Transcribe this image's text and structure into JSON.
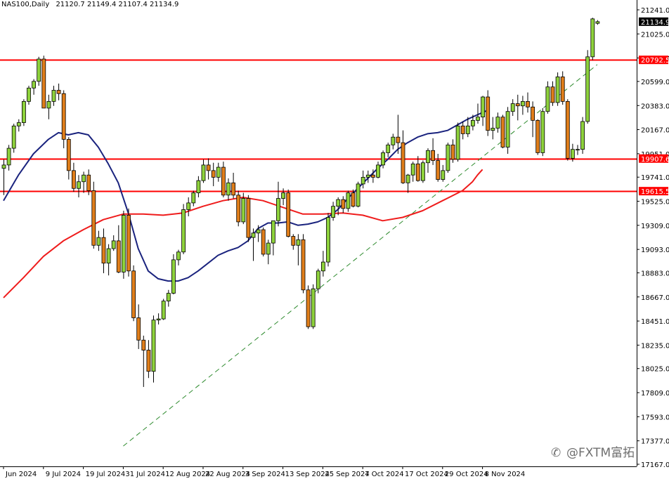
{
  "header": {
    "symbol": "NAS100,Daily",
    "ohlc": "21120.7 21149.4 21107.4 21134.9"
  },
  "watermark": {
    "text": "@FXTM富拓"
  },
  "chart_data": {
    "type": "candlestick",
    "symbol": "NAS100",
    "timeframe": "Daily",
    "ylim": [
      17167,
      21345
    ],
    "y_ticks": [
      21241.0,
      21025.0,
      20809.0,
      20599.0,
      20383.0,
      20167.0,
      19951.0,
      19741.0,
      19525.0,
      19309.0,
      19093.0,
      18883.0,
      18667.0,
      18451.0,
      18235.0,
      18025.0,
      17809.0,
      17593.0,
      17377.0,
      17167.0
    ],
    "x_ticks": [
      {
        "label": "Jun 2024",
        "i": 0
      },
      {
        "label": "9 Jul 2024",
        "i": 8
      },
      {
        "label": "19 Jul 2024",
        "i": 16
      },
      {
        "label": "31 Jul 2024",
        "i": 24
      },
      {
        "label": "12 Aug 2024",
        "i": 32
      },
      {
        "label": "22 Aug 2024",
        "i": 40
      },
      {
        "label": "3 Sep 2024",
        "i": 48
      },
      {
        "label": "13 Sep 2024",
        "i": 56
      },
      {
        "label": "25 Sep 2024",
        "i": 64
      },
      {
        "label": "7 Oct 2024",
        "i": 72
      },
      {
        "label": "17 Oct 2024",
        "i": 80
      },
      {
        "label": "29 Oct 2024",
        "i": 88
      },
      {
        "label": "8 Nov 2024",
        "i": 96
      }
    ],
    "candles": [
      [
        19820,
        19900,
        19580,
        19850
      ],
      [
        19850,
        20030,
        19800,
        20000
      ],
      [
        20000,
        20220,
        19960,
        20200
      ],
      [
        20200,
        20260,
        20150,
        20230
      ],
      [
        20230,
        20440,
        20200,
        20420
      ],
      [
        20420,
        20560,
        20390,
        20540
      ],
      [
        20540,
        20620,
        20480,
        20600
      ],
      [
        20600,
        20820,
        20560,
        20800
      ],
      [
        20800,
        20830,
        20360,
        20360
      ],
      [
        20360,
        20480,
        20260,
        20420
      ],
      [
        20420,
        20560,
        20380,
        20520
      ],
      [
        20520,
        20580,
        20430,
        20490
      ],
      [
        20490,
        20520,
        20000,
        20080
      ],
      [
        20080,
        20100,
        19720,
        19800
      ],
      [
        19800,
        19870,
        19610,
        19640
      ],
      [
        19640,
        19760,
        19560,
        19700
      ],
      [
        19700,
        19790,
        19600,
        19760
      ],
      [
        19760,
        19810,
        19580,
        19620
      ],
      [
        19620,
        19700,
        19100,
        19130
      ],
      [
        19130,
        19260,
        19080,
        19200
      ],
      [
        19200,
        19280,
        18880,
        18970
      ],
      [
        18970,
        19140,
        18860,
        19100
      ],
      [
        19100,
        19220,
        19080,
        19170
      ],
      [
        19170,
        19310,
        18880,
        18890
      ],
      [
        18890,
        19440,
        18830,
        19400
      ],
      [
        19400,
        19460,
        18850,
        18900
      ],
      [
        18900,
        18950,
        18450,
        18480
      ],
      [
        18480,
        18600,
        18200,
        18280
      ],
      [
        18280,
        18320,
        17860,
        18190
      ],
      [
        18190,
        18280,
        17940,
        18000
      ],
      [
        18000,
        18500,
        17900,
        18460
      ],
      [
        18460,
        18520,
        18420,
        18470
      ],
      [
        18470,
        18650,
        18460,
        18630
      ],
      [
        18630,
        18730,
        18580,
        18700
      ],
      [
        18700,
        19050,
        18690,
        19000
      ],
      [
        19000,
        19090,
        18950,
        19070
      ],
      [
        19070,
        19500,
        19050,
        19450
      ],
      [
        19450,
        19560,
        19390,
        19510
      ],
      [
        19510,
        19620,
        19480,
        19600
      ],
      [
        19600,
        19750,
        19560,
        19710
      ],
      [
        19710,
        19900,
        19690,
        19850
      ],
      [
        19850,
        19910,
        19720,
        19800
      ],
      [
        19800,
        19870,
        19660,
        19740
      ],
      [
        19740,
        19870,
        19700,
        19830
      ],
      [
        19830,
        19880,
        19560,
        19580
      ],
      [
        19580,
        19730,
        19530,
        19690
      ],
      [
        19690,
        19780,
        19550,
        19580
      ],
      [
        19580,
        19620,
        19300,
        19340
      ],
      [
        19340,
        19600,
        19320,
        19550
      ],
      [
        19550,
        19580,
        19160,
        19200
      ],
      [
        19200,
        19280,
        18990,
        19240
      ],
      [
        19240,
        19310,
        19160,
        19270
      ],
      [
        19270,
        19290,
        19030,
        19050
      ],
      [
        19050,
        19180,
        18960,
        19150
      ],
      [
        19150,
        19350,
        19040,
        19350
      ],
      [
        19350,
        19700,
        19300,
        19550
      ],
      [
        19550,
        19640,
        19490,
        19600
      ],
      [
        19600,
        19630,
        19200,
        19210
      ],
      [
        19210,
        19230,
        19090,
        19130
      ],
      [
        19130,
        19230,
        18950,
        19180
      ],
      [
        19180,
        19230,
        18700,
        18730
      ],
      [
        18730,
        18770,
        18380,
        18400
      ],
      [
        18400,
        18780,
        18380,
        18740
      ],
      [
        18740,
        18920,
        18700,
        18900
      ],
      [
        18900,
        19080,
        18850,
        18980
      ],
      [
        18980,
        19420,
        18940,
        19380
      ],
      [
        19380,
        19520,
        19350,
        19480
      ],
      [
        19480,
        19560,
        19400,
        19540
      ],
      [
        19540,
        19570,
        19420,
        19460
      ],
      [
        19460,
        19620,
        19430,
        19600
      ],
      [
        19600,
        19630,
        19470,
        19480
      ],
      [
        19480,
        19700,
        19470,
        19680
      ],
      [
        19680,
        19800,
        19640,
        19740
      ],
      [
        19740,
        19800,
        19690,
        19760
      ],
      [
        19760,
        19810,
        19690,
        19740
      ],
      [
        19740,
        19880,
        19730,
        19850
      ],
      [
        19850,
        19980,
        19820,
        19960
      ],
      [
        19960,
        20050,
        19920,
        20030
      ],
      [
        20030,
        20130,
        19990,
        20100
      ],
      [
        20100,
        20300,
        19950,
        20050
      ],
      [
        20050,
        20160,
        19680,
        19690
      ],
      [
        19690,
        19770,
        19600,
        19760
      ],
      [
        19760,
        19880,
        19700,
        19860
      ],
      [
        19860,
        19930,
        19700,
        19710
      ],
      [
        19710,
        19890,
        19690,
        19870
      ],
      [
        19870,
        20000,
        19780,
        19980
      ],
      [
        19980,
        20090,
        19850,
        19890
      ],
      [
        19890,
        19950,
        19700,
        19720
      ],
      [
        19720,
        19850,
        19700,
        19800
      ],
      [
        19800,
        20050,
        19780,
        20030
      ],
      [
        20030,
        20080,
        19870,
        19900
      ],
      [
        19900,
        20230,
        19880,
        20200
      ],
      [
        20200,
        20240,
        20080,
        20130
      ],
      [
        20130,
        20280,
        20100,
        20200
      ],
      [
        20200,
        20300,
        20160,
        20250
      ],
      [
        20250,
        20400,
        20220,
        20280
      ],
      [
        20280,
        20470,
        20200,
        20460
      ],
      [
        20460,
        20520,
        20110,
        20160
      ],
      [
        20160,
        20280,
        20080,
        20180
      ],
      [
        20180,
        20320,
        20140,
        20280
      ],
      [
        20280,
        20300,
        20000,
        20010
      ],
      [
        20010,
        20370,
        19950,
        20330
      ],
      [
        20330,
        20440,
        20290,
        20400
      ],
      [
        20400,
        20480,
        20250,
        20380
      ],
      [
        20380,
        20470,
        20300,
        20420
      ],
      [
        20420,
        20500,
        20320,
        20370
      ],
      [
        20370,
        20420,
        20100,
        20250
      ],
      [
        20250,
        20260,
        19940,
        19960
      ],
      [
        19960,
        20360,
        19930,
        20330
      ],
      [
        20330,
        20600,
        20310,
        20550
      ],
      [
        20550,
        20600,
        20380,
        20410
      ],
      [
        20410,
        20680,
        20380,
        20640
      ],
      [
        20640,
        20690,
        20390,
        20420
      ],
      [
        20420,
        20440,
        19890,
        19910
      ],
      [
        19910,
        20040,
        19880,
        19990
      ],
      [
        19990,
        20030,
        19940,
        19990
      ],
      [
        19990,
        20280,
        19950,
        20240
      ],
      [
        20240,
        20880,
        20220,
        20820
      ],
      [
        20820,
        21170,
        20790,
        21160
      ],
      [
        21120,
        21149,
        21107,
        21135
      ]
    ],
    "series": [
      {
        "name": "MA20",
        "color": "#1a237e",
        "values": [
          [
            0,
            19530
          ],
          [
            3,
            19760
          ],
          [
            6,
            19950
          ],
          [
            9,
            20080
          ],
          [
            11,
            20140
          ],
          [
            13,
            20120
          ],
          [
            15,
            20140
          ],
          [
            17,
            20120
          ],
          [
            19,
            20010
          ],
          [
            21,
            19860
          ],
          [
            23,
            19690
          ],
          [
            25,
            19420
          ],
          [
            27,
            19100
          ],
          [
            29,
            18900
          ],
          [
            31,
            18830
          ],
          [
            33,
            18810
          ],
          [
            35,
            18810
          ],
          [
            37,
            18840
          ],
          [
            39,
            18900
          ],
          [
            41,
            18970
          ],
          [
            43,
            19040
          ],
          [
            45,
            19080
          ],
          [
            47,
            19110
          ],
          [
            49,
            19170
          ],
          [
            51,
            19280
          ],
          [
            53,
            19330
          ],
          [
            55,
            19330
          ],
          [
            57,
            19340
          ],
          [
            59,
            19310
          ],
          [
            61,
            19320
          ],
          [
            63,
            19340
          ],
          [
            65,
            19380
          ],
          [
            67,
            19450
          ],
          [
            69,
            19550
          ],
          [
            71,
            19640
          ],
          [
            73,
            19730
          ],
          [
            75,
            19820
          ],
          [
            77,
            19900
          ],
          [
            79,
            19990
          ],
          [
            81,
            20050
          ],
          [
            83,
            20100
          ],
          [
            85,
            20130
          ],
          [
            87,
            20140
          ],
          [
            89,
            20160
          ],
          [
            91,
            20210
          ],
          [
            93,
            20260
          ],
          [
            95,
            20300
          ],
          [
            97,
            20340
          ]
        ]
      },
      {
        "name": "MA50",
        "color": "#ef1c1c",
        "values": [
          [
            0,
            18660
          ],
          [
            4,
            18840
          ],
          [
            8,
            19030
          ],
          [
            12,
            19170
          ],
          [
            16,
            19270
          ],
          [
            20,
            19360
          ],
          [
            24,
            19410
          ],
          [
            28,
            19410
          ],
          [
            32,
            19400
          ],
          [
            36,
            19420
          ],
          [
            40,
            19480
          ],
          [
            44,
            19530
          ],
          [
            48,
            19560
          ],
          [
            52,
            19530
          ],
          [
            56,
            19470
          ],
          [
            60,
            19410
          ],
          [
            64,
            19410
          ],
          [
            68,
            19420
          ],
          [
            72,
            19400
          ],
          [
            76,
            19350
          ],
          [
            80,
            19380
          ],
          [
            84,
            19440
          ],
          [
            88,
            19530
          ],
          [
            92,
            19620
          ],
          [
            94,
            19700
          ],
          [
            95,
            19760
          ],
          [
            96,
            19810
          ]
        ]
      }
    ],
    "levels": [
      {
        "price": 20792.5,
        "label": "20792.5",
        "color": "#ff0000"
      },
      {
        "price": 19907.6,
        "label": "19907.6",
        "color": "#ff0000"
      },
      {
        "price": 19615.5,
        "label": "19615.5",
        "color": "#ff0000"
      }
    ],
    "last_price": {
      "price": 21134.9,
      "label": "21134.9"
    },
    "trendline": {
      "from": [
        24,
        17330
      ],
      "to": [
        119,
        20750
      ],
      "color": "#2e8b2e",
      "style": "dashed"
    },
    "colors": {
      "up": "#8ed23c",
      "down": "#e07e1a",
      "outline": "#000000",
      "grid": "none"
    }
  }
}
